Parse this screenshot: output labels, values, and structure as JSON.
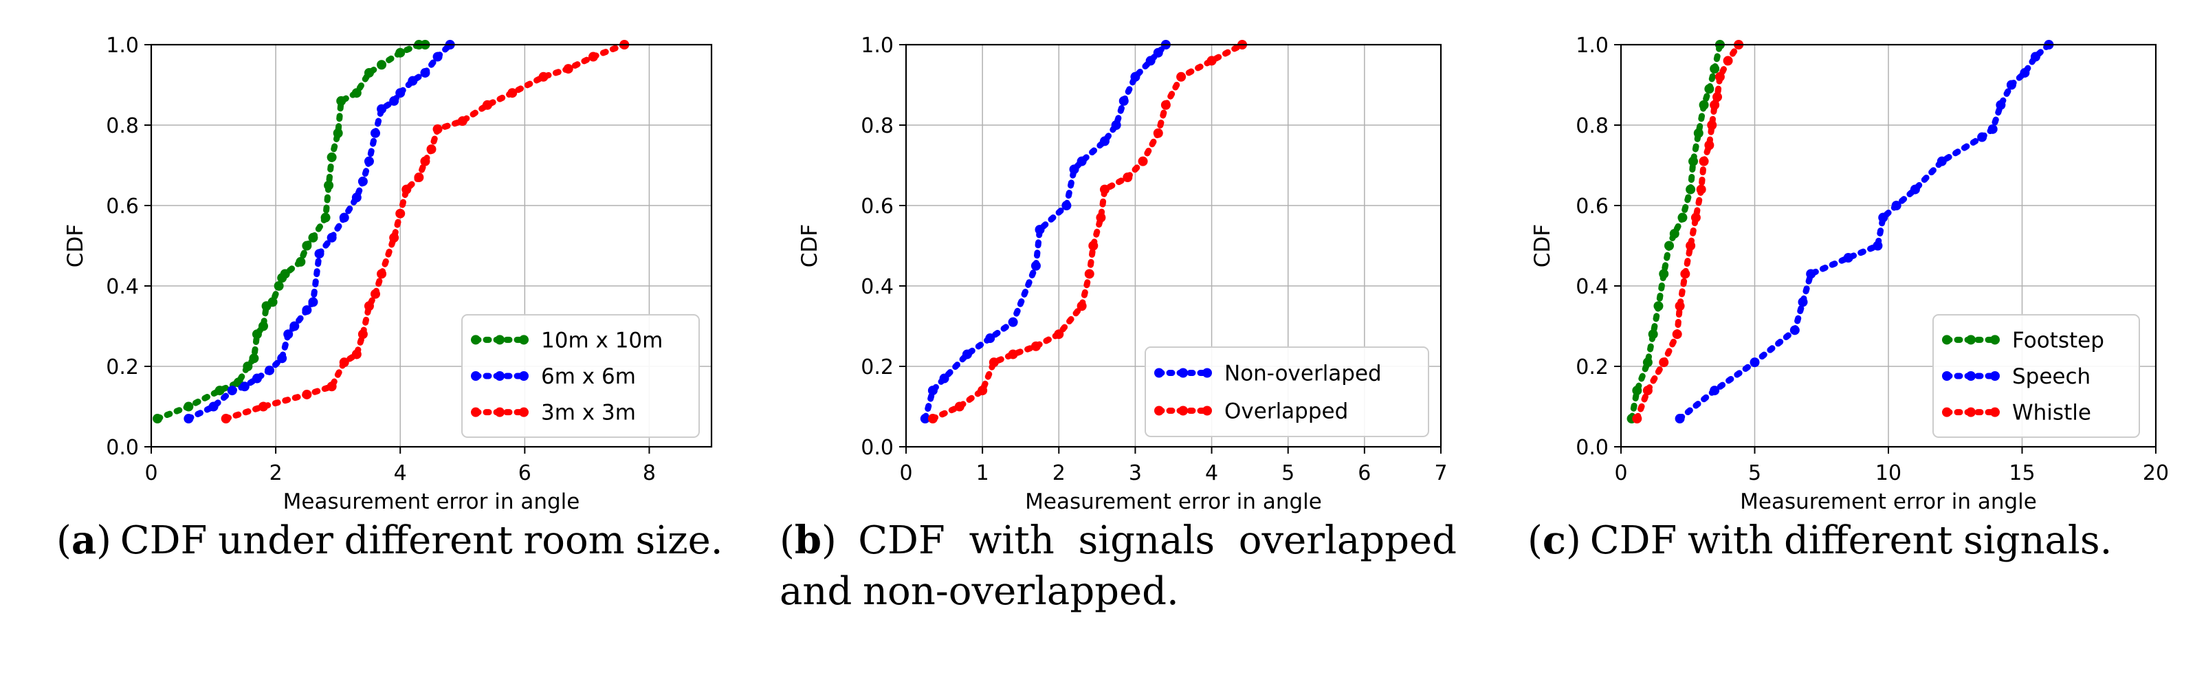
{
  "chart_data": [
    {
      "type": "line",
      "title": "",
      "xlabel": "Measurement error in angle",
      "ylabel": "CDF",
      "xlim": [
        0,
        9
      ],
      "ylim": [
        0,
        1
      ],
      "xticks": [
        0,
        2,
        4,
        6,
        8
      ],
      "yticks": [
        0.0,
        0.2,
        0.4,
        0.6,
        0.8,
        1.0
      ],
      "grid": true,
      "legend_position": "lower-right",
      "caption_label": "a",
      "caption_text": "CDF under different room size.",
      "series": [
        {
          "name": "10m x 10m",
          "color": "#008000",
          "x": [
            0.1,
            0.6,
            1.1,
            1.4,
            1.55,
            1.65,
            1.7,
            1.8,
            1.85,
            1.95,
            2.05,
            2.1,
            2.15,
            2.4,
            2.5,
            2.6,
            2.8,
            2.85,
            2.9,
            3.0,
            3.05,
            3.3,
            3.5,
            3.7,
            4.0,
            4.3,
            4.4
          ],
          "y": [
            0.07,
            0.1,
            0.14,
            0.16,
            0.2,
            0.22,
            0.28,
            0.3,
            0.35,
            0.36,
            0.4,
            0.42,
            0.43,
            0.46,
            0.5,
            0.52,
            0.57,
            0.65,
            0.72,
            0.78,
            0.86,
            0.88,
            0.93,
            0.95,
            0.98,
            1.0,
            1.0
          ]
        },
        {
          "name": "6m x 6m",
          "color": "#0000ff",
          "x": [
            0.6,
            1.0,
            1.3,
            1.5,
            1.7,
            1.9,
            2.1,
            2.2,
            2.3,
            2.5,
            2.6,
            2.7,
            2.9,
            3.1,
            3.3,
            3.4,
            3.5,
            3.6,
            3.7,
            3.9,
            4.0,
            4.2,
            4.4,
            4.6,
            4.8
          ],
          "y": [
            0.07,
            0.1,
            0.14,
            0.15,
            0.17,
            0.19,
            0.22,
            0.28,
            0.3,
            0.34,
            0.36,
            0.48,
            0.52,
            0.57,
            0.62,
            0.66,
            0.71,
            0.78,
            0.84,
            0.86,
            0.88,
            0.91,
            0.93,
            0.97,
            1.0
          ]
        },
        {
          "name": "3m x 3m",
          "color": "#ff0000",
          "x": [
            1.2,
            1.8,
            2.5,
            2.9,
            3.1,
            3.3,
            3.4,
            3.5,
            3.6,
            3.7,
            3.9,
            4.0,
            4.1,
            4.3,
            4.4,
            4.5,
            4.6,
            5.0,
            5.4,
            5.8,
            6.3,
            6.7,
            7.1,
            7.6
          ],
          "y": [
            0.07,
            0.1,
            0.13,
            0.15,
            0.21,
            0.23,
            0.28,
            0.35,
            0.38,
            0.43,
            0.52,
            0.58,
            0.64,
            0.67,
            0.71,
            0.74,
            0.79,
            0.81,
            0.85,
            0.88,
            0.92,
            0.94,
            0.97,
            1.0
          ]
        }
      ]
    },
    {
      "type": "line",
      "title": "",
      "xlabel": "Measurement error in angle",
      "ylabel": "CDF",
      "xlim": [
        0,
        7
      ],
      "ylim": [
        0,
        1
      ],
      "xticks": [
        0,
        1,
        2,
        3,
        4,
        5,
        6,
        7
      ],
      "yticks": [
        0.0,
        0.2,
        0.4,
        0.6,
        0.8,
        1.0
      ],
      "grid": true,
      "legend_position": "lower-right",
      "caption_label": "b",
      "caption_text": "CDF with signals overlapped and non-overlapped.",
      "series": [
        {
          "name": "Non-overlaped",
          "color": "#0000ff",
          "x": [
            0.25,
            0.35,
            0.5,
            0.8,
            1.1,
            1.4,
            1.7,
            1.75,
            2.1,
            2.2,
            2.3,
            2.6,
            2.75,
            2.85,
            3.0,
            3.2,
            3.3,
            3.4
          ],
          "y": [
            0.07,
            0.14,
            0.17,
            0.23,
            0.27,
            0.31,
            0.45,
            0.54,
            0.6,
            0.69,
            0.71,
            0.76,
            0.8,
            0.86,
            0.92,
            0.96,
            0.98,
            1.0
          ]
        },
        {
          "name": "Overlapped",
          "color": "#ff0000",
          "x": [
            0.35,
            0.7,
            1.0,
            1.15,
            1.4,
            1.7,
            2.0,
            2.3,
            2.4,
            2.45,
            2.55,
            2.6,
            2.9,
            3.1,
            3.3,
            3.4,
            3.6,
            4.0,
            4.4
          ],
          "y": [
            0.07,
            0.1,
            0.14,
            0.21,
            0.23,
            0.25,
            0.28,
            0.35,
            0.43,
            0.5,
            0.57,
            0.64,
            0.67,
            0.71,
            0.78,
            0.85,
            0.92,
            0.96,
            1.0
          ]
        }
      ]
    },
    {
      "type": "line",
      "title": "",
      "xlabel": "Measurement error in angle",
      "ylabel": "CDF",
      "xlim": [
        0,
        20
      ],
      "ylim": [
        0,
        1
      ],
      "xticks": [
        0,
        5,
        10,
        15,
        20
      ],
      "yticks": [
        0.0,
        0.2,
        0.4,
        0.6,
        0.8,
        1.0
      ],
      "grid": true,
      "legend_position": "lower-right",
      "caption_label": "c",
      "caption_text": "CDF with different signals.",
      "series": [
        {
          "name": "Footstep",
          "color": "#008000",
          "x": [
            0.4,
            0.6,
            1.0,
            1.2,
            1.4,
            1.6,
            1.8,
            2.0,
            2.3,
            2.6,
            2.7,
            2.9,
            3.1,
            3.3,
            3.5,
            3.7
          ],
          "y": [
            0.07,
            0.14,
            0.21,
            0.28,
            0.35,
            0.43,
            0.5,
            0.53,
            0.57,
            0.64,
            0.71,
            0.78,
            0.85,
            0.89,
            0.94,
            1.0
          ]
        },
        {
          "name": "Speech",
          "color": "#0000ff",
          "x": [
            2.2,
            3.5,
            5.0,
            6.5,
            6.8,
            7.1,
            8.5,
            9.6,
            9.8,
            10.3,
            11.0,
            12.0,
            13.5,
            13.9,
            14.2,
            14.6,
            15.1,
            15.5,
            16.0
          ],
          "y": [
            0.07,
            0.14,
            0.21,
            0.29,
            0.36,
            0.43,
            0.47,
            0.5,
            0.57,
            0.6,
            0.64,
            0.71,
            0.77,
            0.79,
            0.85,
            0.9,
            0.93,
            0.97,
            1.0
          ]
        },
        {
          "name": "Whistle",
          "color": "#ff0000",
          "x": [
            0.6,
            1.0,
            1.6,
            2.1,
            2.2,
            2.4,
            2.6,
            2.8,
            3.0,
            3.1,
            3.3,
            3.4,
            3.5,
            3.6,
            3.7,
            4.0,
            4.4
          ],
          "y": [
            0.07,
            0.14,
            0.21,
            0.28,
            0.35,
            0.43,
            0.5,
            0.57,
            0.64,
            0.71,
            0.75,
            0.8,
            0.85,
            0.87,
            0.92,
            0.96,
            1.0
          ]
        }
      ]
    }
  ]
}
